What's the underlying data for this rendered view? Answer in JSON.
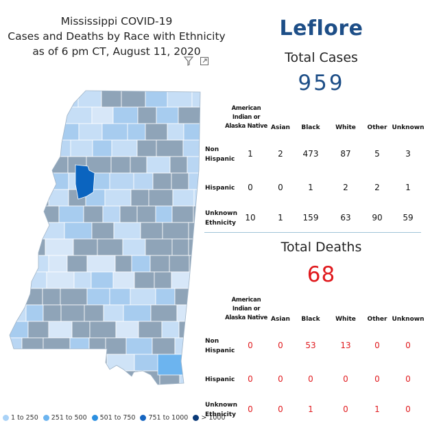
{
  "title": {
    "line1": "Mississippi COVID-19",
    "line2": "Cases and Deaths by Race with Ethnicity",
    "line3": "as of 6 pm CT, August 11, 2020"
  },
  "icons": {
    "filter": "filter-icon",
    "expand": "expand-icon"
  },
  "legend": [
    {
      "label": "1 to 250",
      "color": "#a9d2f7"
    },
    {
      "label": "251 to 500",
      "color": "#6cb4ef"
    },
    {
      "label": "501 to 750",
      "color": "#2b8fe0"
    },
    {
      "label": "751 to 1000",
      "color": "#1565c0"
    },
    {
      "label": "> 1000",
      "color": "#0b3a78"
    }
  ],
  "county": "Leflore",
  "cases": {
    "label": "Total Cases",
    "value": "959",
    "headers": [
      "American Indian or Alaska Native",
      "Asian",
      "Black",
      "White",
      "Other",
      "Unknown"
    ],
    "header_lines": {
      "american": [
        "American",
        "Indian or",
        "Alaska Native"
      ]
    },
    "rows": [
      {
        "label_lines": [
          "Non",
          "Hispanic"
        ],
        "values": [
          "1",
          "2",
          "473",
          "87",
          "5",
          "3"
        ]
      },
      {
        "label_lines": [
          "Hispanic"
        ],
        "values": [
          "0",
          "0",
          "1",
          "2",
          "2",
          "1"
        ]
      },
      {
        "label_lines": [
          "Unknown",
          "Ethnicity"
        ],
        "values": [
          "10",
          "1",
          "159",
          "63",
          "90",
          "59"
        ]
      }
    ]
  },
  "deaths": {
    "label": "Total Deaths",
    "value": "68",
    "headers": [
      "American Indian or Alaska Native",
      "Asian",
      "Black",
      "White",
      "Other",
      "Unknown"
    ],
    "header_lines": {
      "american": [
        "American",
        "Indian or",
        "Alaska Native"
      ]
    },
    "rows": [
      {
        "label_lines": [
          "Non",
          "Hispanic"
        ],
        "values": [
          "0",
          "0",
          "53",
          "13",
          "0",
          "0"
        ]
      },
      {
        "label_lines": [
          "Hispanic"
        ],
        "values": [
          "0",
          "0",
          "0",
          "0",
          "0",
          "0"
        ]
      },
      {
        "label_lines": [
          "Unknown",
          "Ethnicity"
        ],
        "values": [
          "0",
          "0",
          "1",
          "0",
          "1",
          "0"
        ]
      }
    ]
  },
  "colors": {
    "county_blue": "#1d4e87",
    "deaths_red": "#e0191d",
    "map_gray": "#8fa4b8",
    "map_light": "#c6def6",
    "map_mid": "#a7ccef",
    "map_highlight": "#0b64bf"
  }
}
